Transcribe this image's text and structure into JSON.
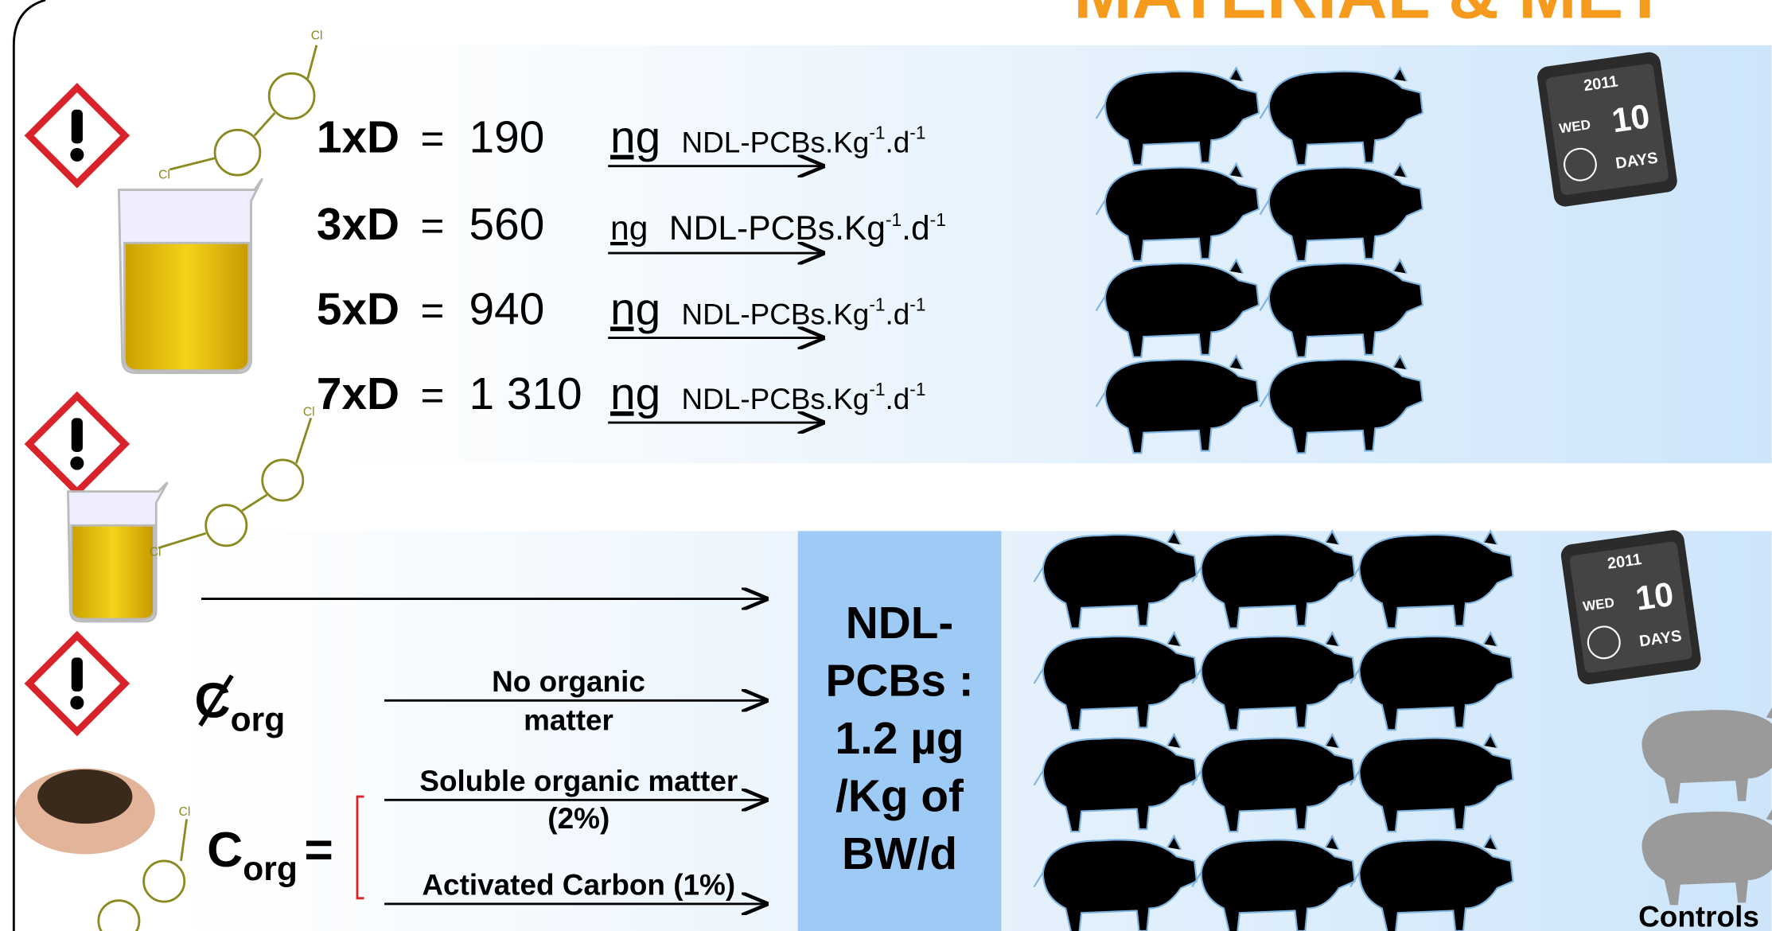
{
  "title": "MATERIAL & MET",
  "molecule_label": "Cl",
  "unit": {
    "main": "NDL-PCBs.Kg",
    "exp1": "-1",
    "mid": ".d",
    "exp2": "-1"
  },
  "ng": "ng",
  "equals": "=",
  "doses": [
    {
      "label": "1xD",
      "value": "190"
    },
    {
      "label": "3xD",
      "value": "560"
    },
    {
      "label": "5xD",
      "value": "940"
    },
    {
      "label": "7xD",
      "value": "1 310"
    }
  ],
  "calendar": {
    "year": "2011",
    "day": "WED",
    "number": "10",
    "unit": "DAYS"
  },
  "no_org": {
    "symbol": "C",
    "sub": "org",
    "label_lines": [
      "No organic",
      "matter"
    ]
  },
  "org": {
    "symbol": "C",
    "sub": "org",
    "equals": "=",
    "soluble_lines": [
      "Soluble organic matter",
      "(2%)"
    ],
    "carbon": "Activated Carbon (1%)"
  },
  "box_lines": [
    "NDL-",
    "PCBs :",
    "1.2 µg",
    "/Kg of",
    "BW/d"
  ],
  "controls": "Controls"
}
